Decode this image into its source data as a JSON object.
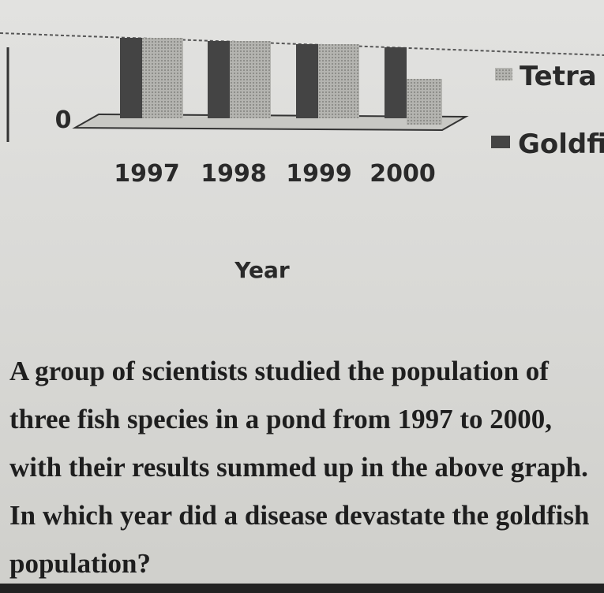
{
  "chart": {
    "yticks": [
      "0"
    ],
    "categories": [
      "1997",
      "1998",
      "1999",
      "2000"
    ],
    "x_label": "Year",
    "legend": [
      "Tetra",
      "Goldfis"
    ]
  },
  "question": "A group of scientists studied the population of three fish species in a pond from 1997 to 2000, with their results summed up in the above graph. In which year did a disease devastate the goldfish population?"
}
